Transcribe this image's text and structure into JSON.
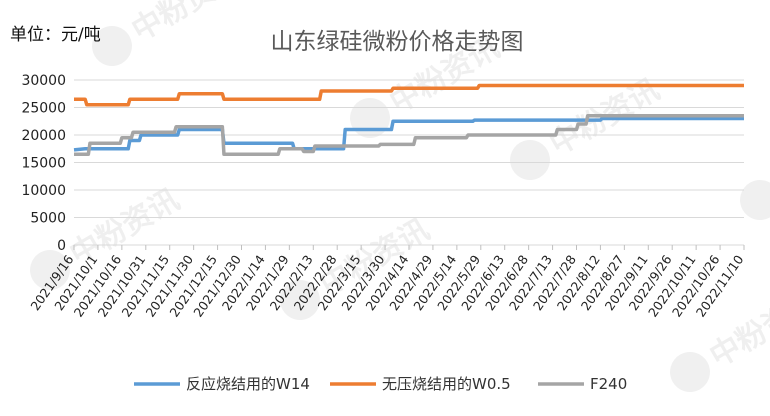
{
  "chart_data": {
    "type": "line",
    "unit_label": "单位：元/吨",
    "title": "山东绿硅微粉价格走势图",
    "xlabel": "",
    "ylabel": "",
    "ylim": [
      0,
      30000
    ],
    "yticks": [
      0,
      5000,
      10000,
      15000,
      20000,
      25000,
      30000
    ],
    "xlim": [
      "2021/9/16",
      "2022/11/10"
    ],
    "categories": [
      "2021/9/16",
      "2021/10/1",
      "2021/10/16",
      "2021/10/31",
      "2021/11/15",
      "2021/11/30",
      "2021/12/15",
      "2021/12/30",
      "2022/1/14",
      "2022/1/29",
      "2022/2/13",
      "2022/2/28",
      "2022/3/15",
      "2022/3/30",
      "2022/4/14",
      "2022/4/29",
      "2022/5/14",
      "2022/5/29",
      "2022/6/13",
      "2022/6/28",
      "2022/7/13",
      "2022/7/28",
      "2022/8/12",
      "2022/8/27",
      "2022/9/11",
      "2022/9/26",
      "2022/10/11",
      "2022/10/26",
      "2022/11/10"
    ],
    "grid": true,
    "legend_position": "bottom",
    "series": [
      {
        "name": "反应烧结用的W14",
        "color": "#5b9bd5",
        "points": [
          [
            "2021/9/16",
            17300
          ],
          [
            "2021/9/23",
            17500
          ],
          [
            "2021/10/20",
            17500
          ],
          [
            "2021/10/21",
            19000
          ],
          [
            "2021/10/27",
            19000
          ],
          [
            "2021/10/28",
            20000
          ],
          [
            "2021/11/20",
            20000
          ],
          [
            "2021/11/21",
            21000
          ],
          [
            "2021/12/18",
            21000
          ],
          [
            "2021/12/19",
            18500
          ],
          [
            "2022/1/31",
            18500
          ],
          [
            "2022/2/1",
            17500
          ],
          [
            "2022/3/4",
            17500
          ],
          [
            "2022/3/5",
            21000
          ],
          [
            "2022/4/3",
            21000
          ],
          [
            "2022/4/4",
            22500
          ],
          [
            "2022/5/24",
            22500
          ],
          [
            "2022/5/25",
            22700
          ],
          [
            "2022/8/12",
            22700
          ],
          [
            "2022/8/13",
            23000
          ],
          [
            "2022/11/10",
            23000
          ]
        ]
      },
      {
        "name": "无压烧结用的W0.5",
        "color": "#ed7d31",
        "points": [
          [
            "2021/9/16",
            26500
          ],
          [
            "2021/9/23",
            26500
          ],
          [
            "2021/9/24",
            25500
          ],
          [
            "2021/10/20",
            25500
          ],
          [
            "2021/10/21",
            26500
          ],
          [
            "2021/11/20",
            26500
          ],
          [
            "2021/11/21",
            27500
          ],
          [
            "2021/12/18",
            27500
          ],
          [
            "2021/12/19",
            26500
          ],
          [
            "2022/2/17",
            26500
          ],
          [
            "2022/2/18",
            28000
          ],
          [
            "2022/4/3",
            28000
          ],
          [
            "2022/4/4",
            28500
          ],
          [
            "2022/5/27",
            28500
          ],
          [
            "2022/5/28",
            29000
          ],
          [
            "2022/11/10",
            29000
          ]
        ]
      },
      {
        "name": "F240",
        "color": "#a5a5a5",
        "points": [
          [
            "2021/9/16",
            16500
          ],
          [
            "2021/9/25",
            16500
          ],
          [
            "2021/9/26",
            18500
          ],
          [
            "2021/10/15",
            18500
          ],
          [
            "2021/10/16",
            19500
          ],
          [
            "2021/10/22",
            19500
          ],
          [
            "2021/10/23",
            20500
          ],
          [
            "2021/11/18",
            20500
          ],
          [
            "2021/11/19",
            21500
          ],
          [
            "2021/12/18",
            21500
          ],
          [
            "2021/12/19",
            16500
          ],
          [
            "2022/1/22",
            16500
          ],
          [
            "2022/1/23",
            17500
          ],
          [
            "2022/2/6",
            17500
          ],
          [
            "2022/2/7",
            17000
          ],
          [
            "2022/2/13",
            17000
          ],
          [
            "2022/2/14",
            18000
          ],
          [
            "2022/3/26",
            18000
          ],
          [
            "2022/3/27",
            18300
          ],
          [
            "2022/4/17",
            18300
          ],
          [
            "2022/4/18",
            19500
          ],
          [
            "2022/5/20",
            19500
          ],
          [
            "2022/5/21",
            20000
          ],
          [
            "2022/7/15",
            20000
          ],
          [
            "2022/7/16",
            21000
          ],
          [
            "2022/7/28",
            21000
          ],
          [
            "2022/7/29",
            22000
          ],
          [
            "2022/8/3",
            22000
          ],
          [
            "2022/8/4",
            23500
          ],
          [
            "2022/11/10",
            23500
          ]
        ]
      }
    ]
  },
  "watermark": {
    "text": "中粉资讯",
    "icon": "p-logo-icon"
  }
}
